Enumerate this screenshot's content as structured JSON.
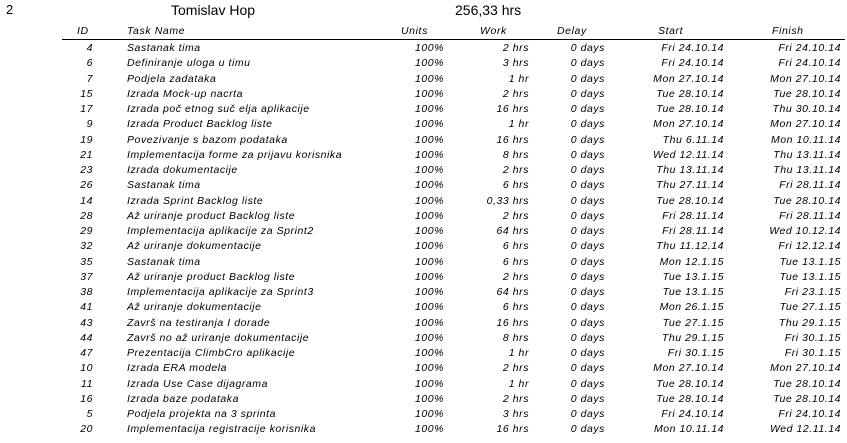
{
  "resource": {
    "row_number": "2",
    "name": "Tomislav Hop",
    "total_work": "256,33 hrs"
  },
  "columns": {
    "id": "ID",
    "task_name": "Task Name",
    "units": "Units",
    "work": "Work",
    "delay": "Delay",
    "start": "Start",
    "finish": "Finish"
  },
  "tasks": [
    {
      "id": "4",
      "name": "Sastanak tima",
      "units": "100%",
      "work": "2 hrs",
      "delay": "0 days",
      "start": "Fri 24.10.14",
      "finish": "Fri 24.10.14"
    },
    {
      "id": "6",
      "name": "Definiranje uloga u timu",
      "units": "100%",
      "work": "3 hrs",
      "delay": "0 days",
      "start": "Fri 24.10.14",
      "finish": "Fri 24.10.14"
    },
    {
      "id": "7",
      "name": "Podjela zadataka",
      "units": "100%",
      "work": "1 hr",
      "delay": "0 days",
      "start": "Mon 27.10.14",
      "finish": "Mon 27.10.14"
    },
    {
      "id": "15",
      "name": "Izrada Mock-up nacrta",
      "units": "100%",
      "work": "2 hrs",
      "delay": "0 days",
      "start": "Tue 28.10.14",
      "finish": "Tue 28.10.14"
    },
    {
      "id": "17",
      "name": "Izrada poč etnog suč elja aplikacije",
      "units": "100%",
      "work": "16 hrs",
      "delay": "0 days",
      "start": "Tue 28.10.14",
      "finish": "Thu 30.10.14"
    },
    {
      "id": "9",
      "name": "Izrada Product Backlog liste",
      "units": "100%",
      "work": "1 hr",
      "delay": "0 days",
      "start": "Mon 27.10.14",
      "finish": "Mon 27.10.14"
    },
    {
      "id": "19",
      "name": "Povezivanje s bazom podataka",
      "units": "100%",
      "work": "16 hrs",
      "delay": "0 days",
      "start": "Thu 6.11.14",
      "finish": "Mon 10.11.14"
    },
    {
      "id": "21",
      "name": "Implementacija forme za prijavu korisnika",
      "units": "100%",
      "work": "8 hrs",
      "delay": "0 days",
      "start": "Wed 12.11.14",
      "finish": "Thu 13.11.14"
    },
    {
      "id": "23",
      "name": "Izrada dokumentacije",
      "units": "100%",
      "work": "2 hrs",
      "delay": "0 days",
      "start": "Thu 13.11.14",
      "finish": "Thu 13.11.14"
    },
    {
      "id": "26",
      "name": "Sastanak tima",
      "units": "100%",
      "work": "6 hrs",
      "delay": "0 days",
      "start": "Thu 27.11.14",
      "finish": "Fri 28.11.14"
    },
    {
      "id": "14",
      "name": "Izrada Sprint Backlog liste",
      "units": "100%",
      "work": "0,33 hrs",
      "delay": "0 days",
      "start": "Tue 28.10.14",
      "finish": "Tue 28.10.14"
    },
    {
      "id": "28",
      "name": "Až uriranje product Backlog liste",
      "units": "100%",
      "work": "2 hrs",
      "delay": "0 days",
      "start": "Fri 28.11.14",
      "finish": "Fri 28.11.14"
    },
    {
      "id": "29",
      "name": "Implementacija aplikacije za Sprint2",
      "units": "100%",
      "work": "64 hrs",
      "delay": "0 days",
      "start": "Fri 28.11.14",
      "finish": "Wed 10.12.14"
    },
    {
      "id": "32",
      "name": "Až uriranje dokumentacije",
      "units": "100%",
      "work": "6 hrs",
      "delay": "0 days",
      "start": "Thu 11.12.14",
      "finish": "Fri 12.12.14"
    },
    {
      "id": "35",
      "name": "Sastanak tima",
      "units": "100%",
      "work": "6 hrs",
      "delay": "0 days",
      "start": "Mon 12.1.15",
      "finish": "Tue 13.1.15"
    },
    {
      "id": "37",
      "name": "Až uriranje product Backlog liste",
      "units": "100%",
      "work": "2 hrs",
      "delay": "0 days",
      "start": "Tue 13.1.15",
      "finish": "Tue 13.1.15"
    },
    {
      "id": "38",
      "name": "Implementacija aplikacije za Sprint3",
      "units": "100%",
      "work": "64 hrs",
      "delay": "0 days",
      "start": "Tue 13.1.15",
      "finish": "Fri 23.1.15"
    },
    {
      "id": "41",
      "name": "Až uriranje dokumentacije",
      "units": "100%",
      "work": "6 hrs",
      "delay": "0 days",
      "start": "Mon 26.1.15",
      "finish": "Tue 27.1.15"
    },
    {
      "id": "43",
      "name": "Završ na testiranja I dorade",
      "units": "100%",
      "work": "16 hrs",
      "delay": "0 days",
      "start": "Tue 27.1.15",
      "finish": "Thu 29.1.15"
    },
    {
      "id": "44",
      "name": "Završ no až uriranje dokumentacije",
      "units": "100%",
      "work": "8 hrs",
      "delay": "0 days",
      "start": "Thu 29.1.15",
      "finish": "Fri 30.1.15"
    },
    {
      "id": "47",
      "name": "Prezentacija ClimbCro aplikacije",
      "units": "100%",
      "work": "1 hr",
      "delay": "0 days",
      "start": "Fri 30.1.15",
      "finish": "Fri 30.1.15"
    },
    {
      "id": "10",
      "name": "Izrada ERA modela",
      "units": "100%",
      "work": "2 hrs",
      "delay": "0 days",
      "start": "Mon 27.10.14",
      "finish": "Mon 27.10.14"
    },
    {
      "id": "11",
      "name": "Izrada Use Case dijagrama",
      "units": "100%",
      "work": "1 hr",
      "delay": "0 days",
      "start": "Tue 28.10.14",
      "finish": "Tue 28.10.14"
    },
    {
      "id": "16",
      "name": "Izrada baze podataka",
      "units": "100%",
      "work": "2 hrs",
      "delay": "0 days",
      "start": "Tue 28.10.14",
      "finish": "Tue 28.10.14"
    },
    {
      "id": "5",
      "name": "Podjela projekta na 3 sprinta",
      "units": "100%",
      "work": "3 hrs",
      "delay": "0 days",
      "start": "Fri 24.10.14",
      "finish": "Fri 24.10.14"
    },
    {
      "id": "20",
      "name": "Implementacija registracije korisnika",
      "units": "100%",
      "work": "16 hrs",
      "delay": "0 days",
      "start": "Mon 10.11.14",
      "finish": "Wed 12.11.14"
    }
  ]
}
